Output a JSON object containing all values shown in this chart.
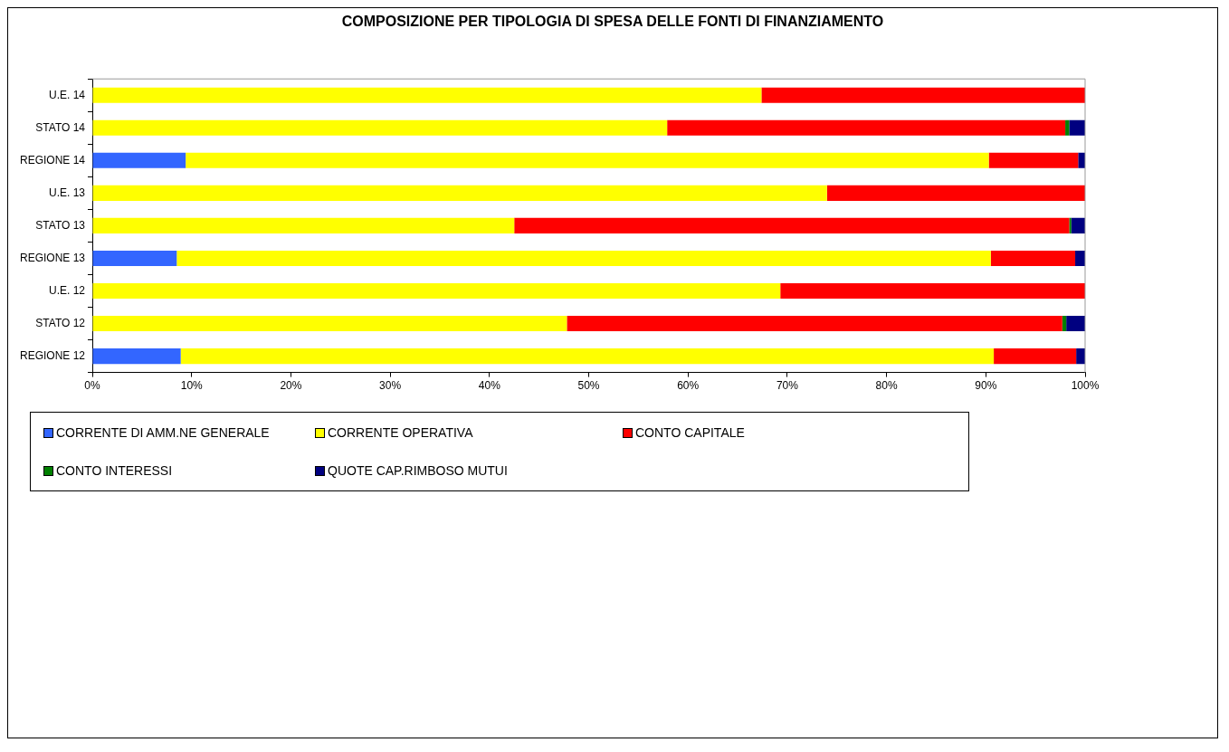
{
  "chart_data": {
    "type": "bar",
    "orientation": "horizontal",
    "stacked": true,
    "title": "COMPOSIZIONE PER TIPOLOGIA DI SPESA DELLE FONTI DI FINANZIAMENTO",
    "categories": [
      "U.E. 14",
      "STATO 14",
      "REGIONE 14",
      "U.E. 13",
      "STATO 13",
      "REGIONE 13",
      "U.E. 12",
      "STATO 12",
      "REGIONE 12"
    ],
    "series": [
      {
        "name": "CORRENTE DI AMM.NE GENERALE",
        "color": "#3366ff",
        "values": [
          0,
          0,
          9.4,
          0,
          0,
          8.5,
          0,
          0,
          8.9
        ]
      },
      {
        "name": "CORRENTE OPERATIVA",
        "color": "#ffff00",
        "values": [
          67.4,
          57.9,
          80.9,
          74.0,
          42.5,
          82.0,
          69.3,
          47.8,
          81.9
        ]
      },
      {
        "name": "CONTO CAPITALE",
        "color": "#ff0000",
        "values": [
          32.6,
          40.1,
          9.0,
          26.0,
          55.9,
          8.5,
          30.7,
          49.9,
          8.3
        ]
      },
      {
        "name": "CONTO INTERESSI",
        "color": "#008000",
        "values": [
          0,
          0.4,
          0,
          0,
          0.2,
          0,
          0,
          0.4,
          0
        ]
      },
      {
        "name": "QUOTE CAP.RIMBOSO MUTUI",
        "color": "#000080",
        "values": [
          0,
          1.6,
          0.7,
          0,
          1.4,
          1.0,
          0,
          1.9,
          0.9
        ]
      }
    ],
    "xlim": [
      0,
      100
    ],
    "xticks": [
      {
        "value": 0,
        "label": "0%"
      },
      {
        "value": 10,
        "label": "10%"
      },
      {
        "value": 20,
        "label": "20%"
      },
      {
        "value": 30,
        "label": "30%"
      },
      {
        "value": 40,
        "label": "40%"
      },
      {
        "value": 50,
        "label": "50%"
      },
      {
        "value": 60,
        "label": "60%"
      },
      {
        "value": 70,
        "label": "70%"
      },
      {
        "value": 80,
        "label": "80%"
      },
      {
        "value": 90,
        "label": "90%"
      },
      {
        "value": 100,
        "label": "100%"
      }
    ],
    "grid": false,
    "legend": "bottom"
  }
}
